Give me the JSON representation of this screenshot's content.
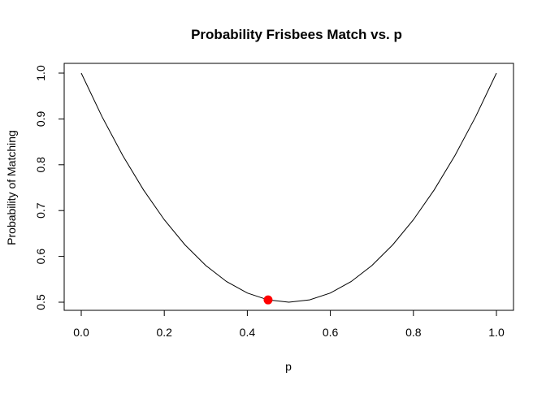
{
  "chart_data": {
    "type": "line",
    "title": "Probability Frisbees Match vs. p",
    "xlabel": "p",
    "ylabel": "Probability of Matching",
    "xlim": [
      0.0,
      1.0
    ],
    "ylim": [
      0.5,
      1.0
    ],
    "x_ticks": [
      0.0,
      0.2,
      0.4,
      0.6,
      0.8,
      1.0
    ],
    "x_tick_labels": [
      "0.0",
      "0.2",
      "0.4",
      "0.6",
      "0.8",
      "1.0"
    ],
    "y_ticks": [
      0.5,
      0.6,
      0.7,
      0.8,
      0.9,
      1.0
    ],
    "y_tick_labels": [
      "0.5",
      "0.6",
      "0.7",
      "0.8",
      "0.9",
      "1.0"
    ],
    "grid": false,
    "series": [
      {
        "x": [
          0.0,
          0.05,
          0.1,
          0.15,
          0.2,
          0.25,
          0.3,
          0.35,
          0.4,
          0.45,
          0.5,
          0.55,
          0.6,
          0.65,
          0.7,
          0.75,
          0.8,
          0.85,
          0.9,
          0.95,
          1.0
        ],
        "y": [
          1.0,
          0.905,
          0.82,
          0.745,
          0.68,
          0.625,
          0.58,
          0.545,
          0.52,
          0.505,
          0.5,
          0.505,
          0.52,
          0.545,
          0.58,
          0.625,
          0.68,
          0.745,
          0.82,
          0.905,
          1.0
        ],
        "color": "#000000"
      }
    ],
    "highlight_point": {
      "x": 0.45,
      "y": 0.505,
      "color": "#ff0000"
    }
  }
}
